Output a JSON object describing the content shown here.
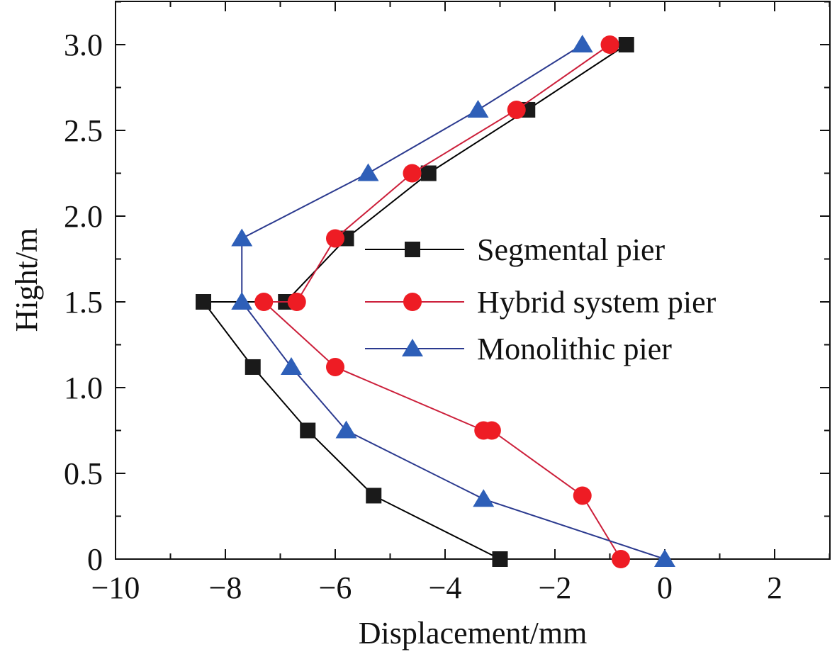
{
  "chart_data": {
    "type": "line",
    "title": "",
    "xlabel": "Displacement/mm",
    "ylabel": "Hight/m",
    "xlim": [
      -10,
      3
    ],
    "ylim": [
      0,
      3.25
    ],
    "xticks": [
      -10,
      -8,
      -6,
      -4,
      -2,
      0,
      2
    ],
    "xtick_labels": [
      "−10",
      "−8",
      "−6",
      "−4",
      "−2",
      "0",
      "2"
    ],
    "yticks": [
      0,
      0.5,
      1.0,
      1.5,
      2.0,
      2.5,
      3.0
    ],
    "ytick_labels": [
      "0",
      "0.5",
      "1.0",
      "1.5",
      "2.0",
      "2.5",
      "3.0"
    ],
    "grid": false,
    "legend_position": "center-right",
    "series": [
      {
        "name": "Segmental pier",
        "marker": "square",
        "line_color": "#000000",
        "marker_color": "#1a1a1a",
        "x": [
          -3.0,
          -5.3,
          -6.5,
          -7.5,
          -8.4,
          -6.9,
          -5.8,
          -4.3,
          -2.5,
          -0.7
        ],
        "y": [
          0,
          0.37,
          0.75,
          1.12,
          1.5,
          1.5,
          1.87,
          2.25,
          2.62,
          3.0
        ]
      },
      {
        "name": "Hybrid system pier",
        "marker": "circle",
        "line_color": "#cc1f3a",
        "marker_color": "#ee1c24",
        "x": [
          -0.8,
          -1.5,
          -3.15,
          -3.3,
          -6.0,
          -7.3,
          -6.7,
          -6.0,
          -4.6,
          -2.7,
          -1.0
        ],
        "y": [
          0,
          0.37,
          0.75,
          0.75,
          1.12,
          1.5,
          1.5,
          1.87,
          2.25,
          2.62,
          3.0
        ]
      },
      {
        "name": "Monolithic pier",
        "marker": "triangle",
        "line_color": "#2b3a8f",
        "marker_color": "#2e5fb8",
        "x": [
          0,
          -3.3,
          -5.8,
          -6.8,
          -7.7,
          -7.7,
          -5.4,
          -3.4,
          -1.5
        ],
        "y": [
          0,
          0.35,
          0.75,
          1.12,
          1.5,
          1.87,
          2.25,
          2.62,
          3.0
        ]
      }
    ]
  }
}
